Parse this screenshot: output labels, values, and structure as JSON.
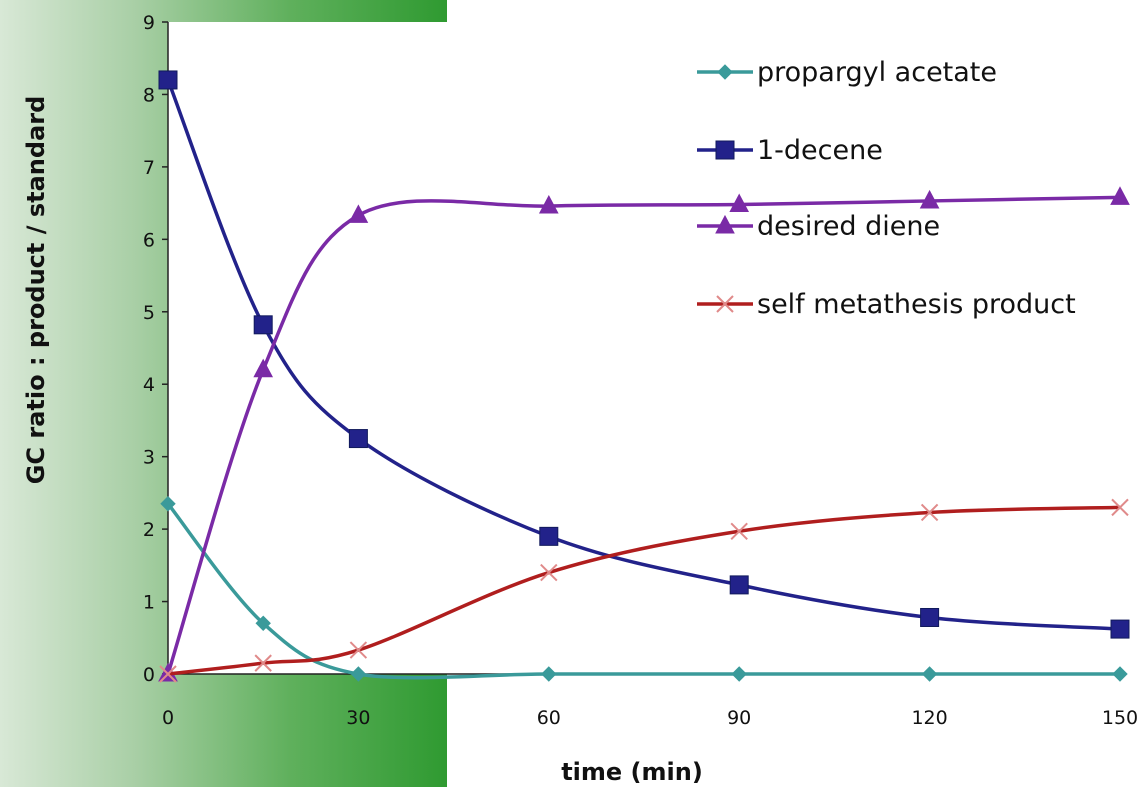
{
  "chart_data": {
    "type": "line",
    "xlabel": "time (min)",
    "ylabel": "GC ratio : product / standard",
    "xlim": [
      0,
      150
    ],
    "ylim": [
      0,
      9
    ],
    "xticks": [
      0,
      30,
      60,
      90,
      120,
      150
    ],
    "yticks": [
      0,
      1,
      2,
      3,
      4,
      5,
      6,
      7,
      8,
      9
    ],
    "grid": false,
    "legend_position": "top-right",
    "series": [
      {
        "name": "propargyl acetate",
        "color": "#3a9a9a",
        "marker": "diamond",
        "x": [
          0,
          15,
          30,
          60,
          90,
          120,
          150
        ],
        "y": [
          2.35,
          0.7,
          0.0,
          0.0,
          0.0,
          0.0,
          0.0
        ]
      },
      {
        "name": "1-decene",
        "color": "#22228a",
        "marker": "square",
        "x": [
          0,
          15,
          30,
          60,
          90,
          120,
          150
        ],
        "y": [
          8.2,
          4.82,
          3.25,
          1.9,
          1.23,
          0.78,
          0.62
        ]
      },
      {
        "name": "desired diene",
        "color": "#7a2aa6",
        "marker": "triangle",
        "x": [
          0,
          15,
          30,
          60,
          90,
          120,
          150
        ],
        "y": [
          0.0,
          4.2,
          6.33,
          6.46,
          6.48,
          6.53,
          6.58
        ]
      },
      {
        "name": "self metathesis product",
        "color": "#b01e1e",
        "marker": "x",
        "x": [
          0,
          15,
          30,
          60,
          90,
          120,
          150
        ],
        "y": [
          0.0,
          0.15,
          0.33,
          1.4,
          1.97,
          2.23,
          2.3
        ]
      }
    ]
  }
}
